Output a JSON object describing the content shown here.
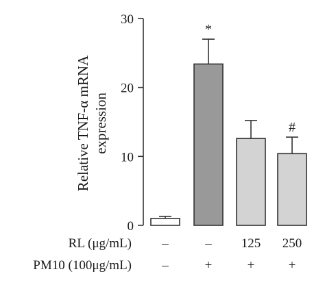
{
  "chart_data": {
    "type": "bar",
    "ylabel_lines": [
      "Relative TNF-α mRNA",
      "expression"
    ],
    "ylim": [
      0,
      30
    ],
    "yticks": [
      0,
      10,
      20,
      30
    ],
    "bars": [
      {
        "value": 1.0,
        "error": 0.3,
        "fill": "#ffffff",
        "mark": ""
      },
      {
        "value": 23.4,
        "error": 3.6,
        "fill": "#999999",
        "mark": "*"
      },
      {
        "value": 12.6,
        "error": 2.6,
        "fill": "#d3d3d3",
        "mark": ""
      },
      {
        "value": 10.4,
        "error": 2.4,
        "fill": "#d3d3d3",
        "mark": "#"
      }
    ],
    "condition_rows": [
      {
        "label": "RL (μg/mL)",
        "values": [
          "–",
          "–",
          "125",
          "250"
        ]
      },
      {
        "label": "PM10 (100μg/mL)",
        "values": [
          "–",
          "+",
          "+",
          "+"
        ]
      }
    ]
  }
}
